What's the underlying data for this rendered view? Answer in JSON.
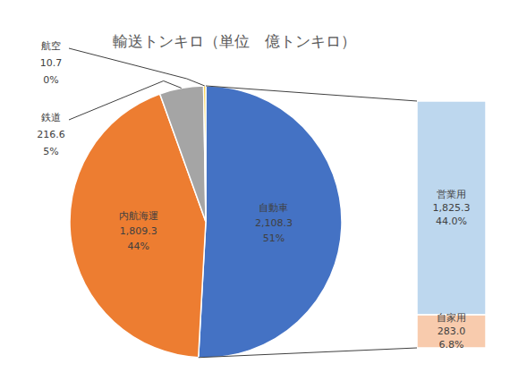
{
  "chart_data": {
    "type": "pie",
    "title": "輸送トンキロ（単位　億トンキロ）",
    "categories": [
      "自動車",
      "内航海運",
      "鉄道",
      "航空"
    ],
    "values": [
      2108.3,
      1809.3,
      216.6,
      10.7
    ],
    "value_labels": [
      "2,108.3",
      "1,809.3",
      "216.6",
      "10.7"
    ],
    "percents": [
      51,
      44,
      5,
      0
    ],
    "percent_labels": [
      "51%",
      "44%",
      "5%",
      "0%"
    ],
    "colors": [
      "#4472c4",
      "#ed7d31",
      "#a5a5a5",
      "#ffc000"
    ],
    "data_labels": true,
    "breakdown": {
      "type": "bar",
      "stacked": true,
      "categories": [
        "営業用",
        "自家用"
      ],
      "values": [
        1825.3,
        283.0
      ],
      "value_labels": [
        "1,825.3",
        "283.0"
      ],
      "percents": [
        44.0,
        6.8
      ],
      "percent_labels": [
        "44.0%",
        "6.8%"
      ],
      "colors": [
        "#bdd7ee",
        "#f8cbad"
      ]
    }
  }
}
